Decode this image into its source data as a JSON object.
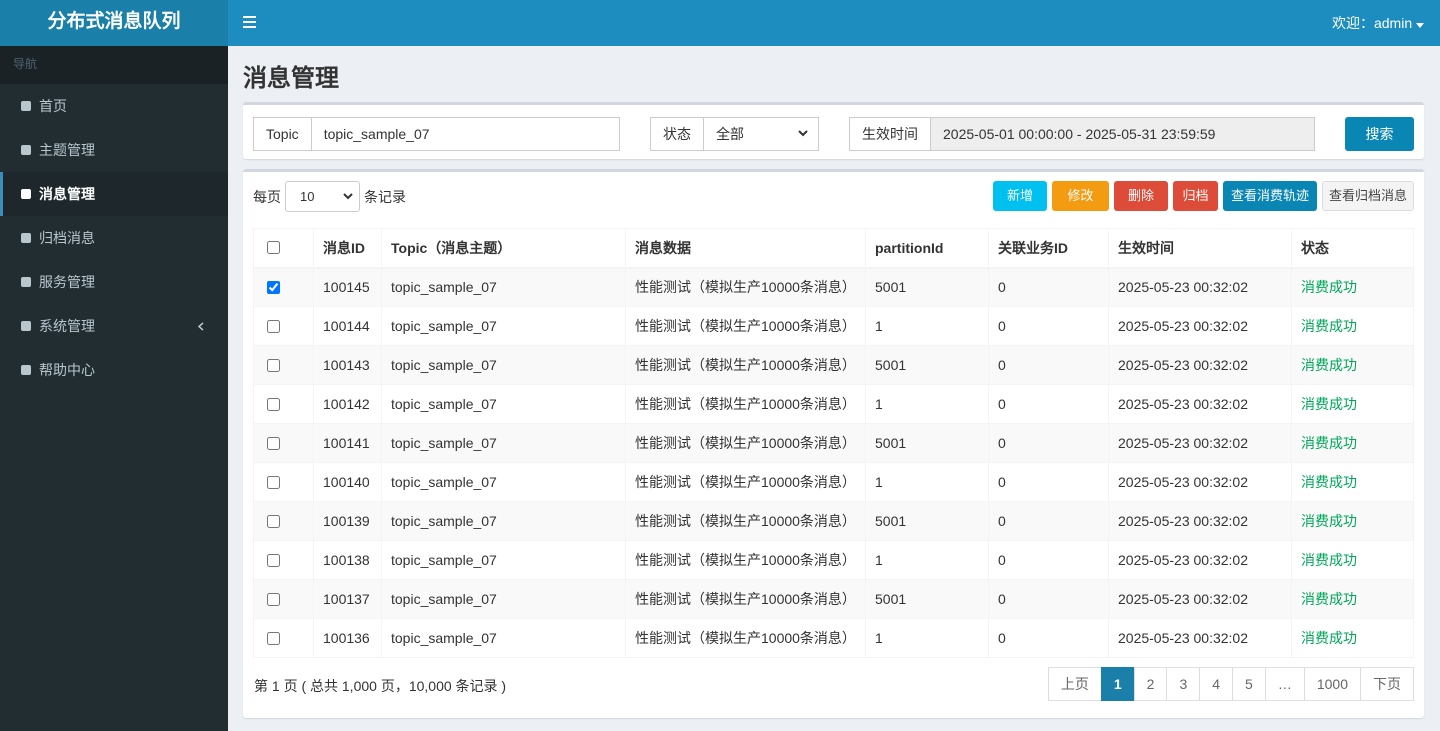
{
  "sidebar": {
    "brand": "分布式消息队列",
    "nav_header": "导航",
    "items": [
      {
        "label": "首页",
        "active": false,
        "caret": false
      },
      {
        "label": "主题管理",
        "active": false,
        "caret": false
      },
      {
        "label": "消息管理",
        "active": true,
        "caret": false
      },
      {
        "label": "归档消息",
        "active": false,
        "caret": false
      },
      {
        "label": "服务管理",
        "active": false,
        "caret": false
      },
      {
        "label": "系统管理",
        "active": false,
        "caret": true
      },
      {
        "label": "帮助中心",
        "active": false,
        "caret": false
      }
    ]
  },
  "header": {
    "welcome": "欢迎：admin"
  },
  "page": {
    "title": "消息管理"
  },
  "filter": {
    "topic_label": "Topic",
    "topic_value": "topic_sample_07",
    "status_label": "状态",
    "status_value": "全部",
    "time_label": "生效时间",
    "time_value": "2025-05-01 00:00:00 - 2025-05-31 23:59:59",
    "search": "搜索"
  },
  "toolbar": {
    "per_page_prefix": "每页",
    "per_page": "10",
    "per_page_suffix": "条记录",
    "buttons": [
      {
        "label": "新增",
        "color": "#00c0ef"
      },
      {
        "label": "修改",
        "color": "#f39c12"
      },
      {
        "label": "删除",
        "color": "#dd4b39"
      },
      {
        "label": "归档",
        "color": "#dd4b39"
      },
      {
        "label": "查看消费轨迹",
        "color": "#0a86b4"
      },
      {
        "label": "查看归档消息",
        "color": "#f4f4f4"
      }
    ]
  },
  "table": {
    "columns": [
      "消息ID",
      "Topic（消息主题）",
      "消息数据",
      "partitionId",
      "关联业务ID",
      "生效时间",
      "状态"
    ],
    "rows": [
      {
        "checked": true,
        "cells": [
          "100145",
          "topic_sample_07",
          "性能测试（模拟生产10000条消息）",
          "5001",
          "0",
          "2025-05-23 00:32:02",
          "消费成功"
        ]
      },
      {
        "checked": false,
        "cells": [
          "100144",
          "topic_sample_07",
          "性能测试（模拟生产10000条消息）",
          "1",
          "0",
          "2025-05-23 00:32:02",
          "消费成功"
        ]
      },
      {
        "checked": false,
        "cells": [
          "100143",
          "topic_sample_07",
          "性能测试（模拟生产10000条消息）",
          "5001",
          "0",
          "2025-05-23 00:32:02",
          "消费成功"
        ]
      },
      {
        "checked": false,
        "cells": [
          "100142",
          "topic_sample_07",
          "性能测试（模拟生产10000条消息）",
          "1",
          "0",
          "2025-05-23 00:32:02",
          "消费成功"
        ]
      },
      {
        "checked": false,
        "cells": [
          "100141",
          "topic_sample_07",
          "性能测试（模拟生产10000条消息）",
          "5001",
          "0",
          "2025-05-23 00:32:02",
          "消费成功"
        ]
      },
      {
        "checked": false,
        "cells": [
          "100140",
          "topic_sample_07",
          "性能测试（模拟生产10000条消息）",
          "1",
          "0",
          "2025-05-23 00:32:02",
          "消费成功"
        ]
      },
      {
        "checked": false,
        "cells": [
          "100139",
          "topic_sample_07",
          "性能测试（模拟生产10000条消息）",
          "5001",
          "0",
          "2025-05-23 00:32:02",
          "消费成功"
        ]
      },
      {
        "checked": false,
        "cells": [
          "100138",
          "topic_sample_07",
          "性能测试（模拟生产10000条消息）",
          "1",
          "0",
          "2025-05-23 00:32:02",
          "消费成功"
        ]
      },
      {
        "checked": false,
        "cells": [
          "100137",
          "topic_sample_07",
          "性能测试（模拟生产10000条消息）",
          "5001",
          "0",
          "2025-05-23 00:32:02",
          "消费成功"
        ]
      },
      {
        "checked": false,
        "cells": [
          "100136",
          "topic_sample_07",
          "性能测试（模拟生产10000条消息）",
          "1",
          "0",
          "2025-05-23 00:32:02",
          "消费成功"
        ]
      }
    ]
  },
  "footer": {
    "summary": "第 1 页 ( 总共 1,000 页，10,000 条记录 )",
    "pages": [
      {
        "label": "上页",
        "active": false
      },
      {
        "label": "1",
        "active": true
      },
      {
        "label": "2",
        "active": false
      },
      {
        "label": "3",
        "active": false
      },
      {
        "label": "4",
        "active": false
      },
      {
        "label": "5",
        "active": false
      },
      {
        "label": "…",
        "active": false
      },
      {
        "label": "1000",
        "active": false
      },
      {
        "label": "下页",
        "active": false
      }
    ]
  }
}
